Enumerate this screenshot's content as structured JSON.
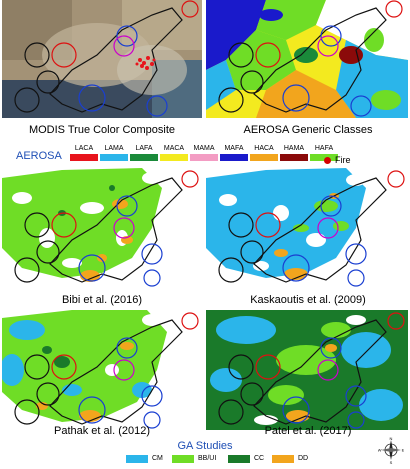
{
  "panels": {
    "modis": {
      "caption": "MODIS True Color Composite"
    },
    "aerosa_generic": {
      "caption": "AEROSA Generic Classes"
    },
    "bibi": {
      "caption": "Bibi et al. (2016)"
    },
    "kaskaoutis": {
      "caption": "Kaskaoutis et al. (2009)"
    },
    "pathak": {
      "caption": "Pathak et al. (2012)"
    },
    "patel": {
      "caption": "Patel et al. (2017)"
    }
  },
  "aerosa_legend": {
    "title": "AEROSA",
    "classes": [
      {
        "label": "LACA",
        "color": "#e8141c"
      },
      {
        "label": "LAMA",
        "color": "#2bb5ea"
      },
      {
        "label": "LAFA",
        "color": "#1a8a3a"
      },
      {
        "label": "MACA",
        "color": "#f3ea1f"
      },
      {
        "label": "MAMA",
        "color": "#f39cc3"
      },
      {
        "label": "MAFA",
        "color": "#1a1acb"
      },
      {
        "label": "HACA",
        "color": "#f2a51d"
      },
      {
        "label": "HAMA",
        "color": "#8b0a0a"
      },
      {
        "label": "HAFA",
        "color": "#6fdd26"
      }
    ],
    "fire_label": "Fire",
    "fire_color": "#d40000"
  },
  "ga_legend": {
    "title": "GA Studies",
    "classes": [
      {
        "label": "CM",
        "color": "#2bb5ea"
      },
      {
        "label": "BB/UI",
        "color": "#6fdd26"
      },
      {
        "label": "CC",
        "color": "#1a7a2a"
      },
      {
        "label": "DD",
        "color": "#f2a51d"
      }
    ]
  },
  "compass": {
    "north": "N",
    "south": "S",
    "east": "E",
    "west": "W"
  }
}
